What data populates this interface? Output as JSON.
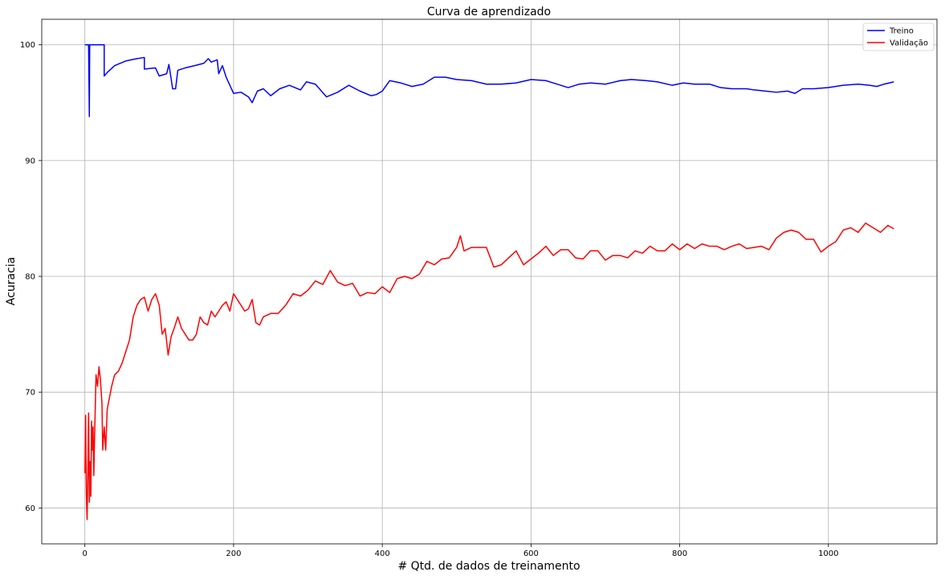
{
  "chart_data": {
    "type": "line",
    "title": "Curva de aprendizado",
    "xlabel": "# Qtd. de dados de treinamento",
    "ylabel": "Acuracia",
    "xlim": [
      -58,
      1146
    ],
    "ylim": [
      56.9,
      102.2
    ],
    "xticks": [
      0,
      200,
      400,
      600,
      800,
      1000
    ],
    "yticks": [
      60,
      70,
      80,
      90,
      100
    ],
    "grid": true,
    "legend_position": "top-right",
    "series": [
      {
        "name": "Treino",
        "color": "#0000ff",
        "points": [
          [
            0,
            100
          ],
          [
            5,
            100
          ],
          [
            6,
            93.8
          ],
          [
            6.5,
            100
          ],
          [
            10,
            100
          ],
          [
            26,
            100
          ],
          [
            26,
            97.3
          ],
          [
            30,
            97.6
          ],
          [
            40,
            98.2
          ],
          [
            55,
            98.6
          ],
          [
            70,
            98.8
          ],
          [
            80,
            98.9
          ],
          [
            80,
            97.9
          ],
          [
            95,
            98.0
          ],
          [
            100,
            97.3
          ],
          [
            110,
            97.5
          ],
          [
            113,
            98.3
          ],
          [
            115,
            97.5
          ],
          [
            118,
            96.2
          ],
          [
            122,
            96.2
          ],
          [
            125,
            97.8
          ],
          [
            135,
            98.0
          ],
          [
            148,
            98.2
          ],
          [
            160,
            98.4
          ],
          [
            166,
            98.8
          ],
          [
            170,
            98.5
          ],
          [
            178,
            98.7
          ],
          [
            180,
            97.5
          ],
          [
            185,
            98.2
          ],
          [
            190,
            97.2
          ],
          [
            200,
            95.8
          ],
          [
            210,
            95.9
          ],
          [
            220,
            95.5
          ],
          [
            225,
            95.0
          ],
          [
            232,
            96.0
          ],
          [
            240,
            96.2
          ],
          [
            250,
            95.6
          ],
          [
            262,
            96.2
          ],
          [
            275,
            96.5
          ],
          [
            290,
            96.1
          ],
          [
            298,
            96.8
          ],
          [
            310,
            96.6
          ],
          [
            325,
            95.5
          ],
          [
            340,
            95.9
          ],
          [
            355,
            96.5
          ],
          [
            370,
            96.0
          ],
          [
            385,
            95.6
          ],
          [
            392,
            95.7
          ],
          [
            400,
            96.0
          ],
          [
            410,
            96.9
          ],
          [
            425,
            96.7
          ],
          [
            440,
            96.4
          ],
          [
            455,
            96.6
          ],
          [
            470,
            97.2
          ],
          [
            485,
            97.2
          ],
          [
            500,
            97.0
          ],
          [
            520,
            96.9
          ],
          [
            540,
            96.6
          ],
          [
            560,
            96.6
          ],
          [
            580,
            96.7
          ],
          [
            600,
            97.0
          ],
          [
            620,
            96.9
          ],
          [
            635,
            96.6
          ],
          [
            650,
            96.3
          ],
          [
            665,
            96.6
          ],
          [
            680,
            96.7
          ],
          [
            700,
            96.6
          ],
          [
            720,
            96.9
          ],
          [
            735,
            97.0
          ],
          [
            755,
            96.9
          ],
          [
            770,
            96.8
          ],
          [
            790,
            96.5
          ],
          [
            805,
            96.7
          ],
          [
            820,
            96.6
          ],
          [
            840,
            96.6
          ],
          [
            855,
            96.3
          ],
          [
            870,
            96.2
          ],
          [
            890,
            96.2
          ],
          [
            900,
            96.1
          ],
          [
            915,
            96.0
          ],
          [
            930,
            95.9
          ],
          [
            945,
            96.0
          ],
          [
            955,
            95.8
          ],
          [
            965,
            96.2
          ],
          [
            980,
            96.2
          ],
          [
            1000,
            96.3
          ],
          [
            1020,
            96.5
          ],
          [
            1040,
            96.6
          ],
          [
            1055,
            96.5
          ],
          [
            1065,
            96.4
          ],
          [
            1075,
            96.6
          ],
          [
            1088,
            96.8
          ]
        ]
      },
      {
        "name": "Validação",
        "color": "#ff0000",
        "points": [
          [
            0,
            63
          ],
          [
            1,
            68
          ],
          [
            2,
            61
          ],
          [
            3,
            59
          ],
          [
            4,
            63
          ],
          [
            5,
            68.2
          ],
          [
            6,
            60.5
          ],
          [
            7,
            64
          ],
          [
            8,
            61
          ],
          [
            9,
            67.5
          ],
          [
            10,
            65
          ],
          [
            11,
            67
          ],
          [
            12,
            62.8
          ],
          [
            13,
            66
          ],
          [
            15,
            71.5
          ],
          [
            17,
            70.5
          ],
          [
            19,
            72.2
          ],
          [
            21,
            71
          ],
          [
            23,
            69
          ],
          [
            24,
            65
          ],
          [
            26,
            67
          ],
          [
            28,
            65
          ],
          [
            30,
            68.5
          ],
          [
            33,
            69.5
          ],
          [
            36,
            70.5
          ],
          [
            40,
            71.5
          ],
          [
            45,
            71.8
          ],
          [
            50,
            72.5
          ],
          [
            55,
            73.5
          ],
          [
            60,
            74.5
          ],
          [
            65,
            76.5
          ],
          [
            70,
            77.5
          ],
          [
            75,
            78
          ],
          [
            80,
            78.2
          ],
          [
            85,
            77
          ],
          [
            90,
            78
          ],
          [
            95,
            78.5
          ],
          [
            100,
            77.5
          ],
          [
            104,
            75
          ],
          [
            108,
            75.5
          ],
          [
            112,
            73.2
          ],
          [
            116,
            74.8
          ],
          [
            120,
            75.5
          ],
          [
            125,
            76.5
          ],
          [
            130,
            75.5
          ],
          [
            135,
            75
          ],
          [
            140,
            74.5
          ],
          [
            145,
            74.5
          ],
          [
            150,
            75
          ],
          [
            155,
            76.5
          ],
          [
            160,
            76
          ],
          [
            165,
            75.8
          ],
          [
            170,
            77
          ],
          [
            175,
            76.5
          ],
          [
            180,
            77
          ],
          [
            185,
            77.5
          ],
          [
            190,
            77.8
          ],
          [
            195,
            77
          ],
          [
            200,
            78.5
          ],
          [
            205,
            78
          ],
          [
            210,
            77.5
          ],
          [
            215,
            77
          ],
          [
            220,
            77.2
          ],
          [
            225,
            78
          ],
          [
            230,
            76
          ],
          [
            235,
            75.8
          ],
          [
            240,
            76.5
          ],
          [
            250,
            76.8
          ],
          [
            260,
            76.8
          ],
          [
            270,
            77.5
          ],
          [
            280,
            78.5
          ],
          [
            290,
            78.3
          ],
          [
            300,
            78.8
          ],
          [
            310,
            79.6
          ],
          [
            320,
            79.3
          ],
          [
            330,
            80.5
          ],
          [
            340,
            79.5
          ],
          [
            350,
            79.2
          ],
          [
            360,
            79.4
          ],
          [
            370,
            78.3
          ],
          [
            380,
            78.6
          ],
          [
            390,
            78.5
          ],
          [
            400,
            79.1
          ],
          [
            410,
            78.6
          ],
          [
            420,
            79.8
          ],
          [
            430,
            80
          ],
          [
            440,
            79.8
          ],
          [
            450,
            80.2
          ],
          [
            460,
            81.3
          ],
          [
            470,
            81
          ],
          [
            480,
            81.5
          ],
          [
            490,
            81.6
          ],
          [
            500,
            82.5
          ],
          [
            505,
            83.5
          ],
          [
            510,
            82.2
          ],
          [
            520,
            82.5
          ],
          [
            540,
            82.5
          ],
          [
            550,
            80.8
          ],
          [
            560,
            81
          ],
          [
            570,
            81.6
          ],
          [
            580,
            82.2
          ],
          [
            590,
            81
          ],
          [
            600,
            81.5
          ],
          [
            610,
            82
          ],
          [
            620,
            82.6
          ],
          [
            630,
            81.8
          ],
          [
            640,
            82.3
          ],
          [
            650,
            82.3
          ],
          [
            660,
            81.6
          ],
          [
            670,
            81.5
          ],
          [
            680,
            82.2
          ],
          [
            690,
            82.2
          ],
          [
            700,
            81.4
          ],
          [
            710,
            81.8
          ],
          [
            720,
            81.8
          ],
          [
            730,
            81.6
          ],
          [
            740,
            82.2
          ],
          [
            750,
            82
          ],
          [
            760,
            82.6
          ],
          [
            770,
            82.2
          ],
          [
            780,
            82.2
          ],
          [
            790,
            82.8
          ],
          [
            800,
            82.3
          ],
          [
            810,
            82.8
          ],
          [
            820,
            82.4
          ],
          [
            830,
            82.8
          ],
          [
            840,
            82.6
          ],
          [
            850,
            82.6
          ],
          [
            860,
            82.3
          ],
          [
            870,
            82.6
          ],
          [
            880,
            82.8
          ],
          [
            890,
            82.4
          ],
          [
            900,
            82.5
          ],
          [
            910,
            82.6
          ],
          [
            920,
            82.3
          ],
          [
            930,
            83.3
          ],
          [
            940,
            83.8
          ],
          [
            950,
            84
          ],
          [
            960,
            83.8
          ],
          [
            970,
            83.2
          ],
          [
            980,
            83.2
          ],
          [
            990,
            82.1
          ],
          [
            1000,
            82.6
          ],
          [
            1010,
            83
          ],
          [
            1020,
            84
          ],
          [
            1030,
            84.2
          ],
          [
            1040,
            83.8
          ],
          [
            1050,
            84.6
          ],
          [
            1060,
            84.2
          ],
          [
            1070,
            83.8
          ],
          [
            1080,
            84.4
          ],
          [
            1088,
            84.1
          ]
        ]
      }
    ]
  }
}
